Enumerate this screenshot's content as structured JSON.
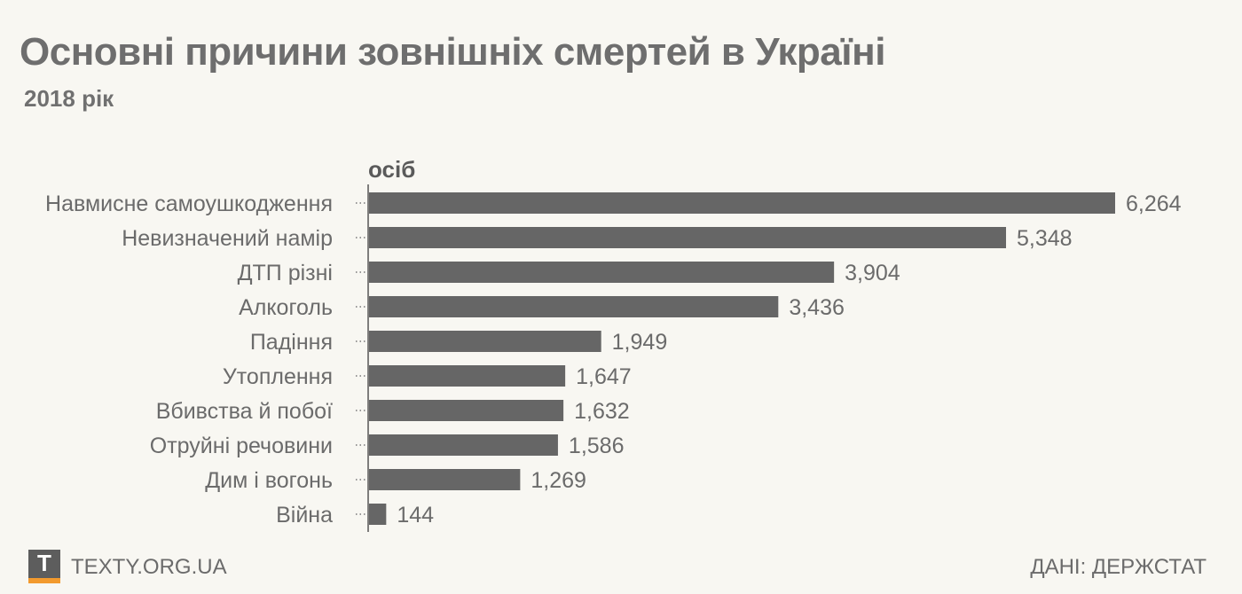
{
  "title": "Основні причини зовнішніх смертей в Україні",
  "subtitle": "2018 рік",
  "footer": {
    "logo_letter": "T",
    "site": "TEXTY.ORG.UA",
    "source": "ДАНІ: ДЕРЖСТАТ"
  },
  "colors": {
    "bar": "#666666",
    "background": "#f8f7f2",
    "text": "#6b6b6b",
    "logo_accent": "#f29a2e"
  },
  "chart_data": {
    "type": "bar",
    "orientation": "horizontal",
    "title": "Основні причини зовнішніх смертей в Україні",
    "subtitle": "2018 рік",
    "unit_label": "осіб",
    "categories": [
      "Навмисне самоушкодження",
      "Невизначений намір",
      "ДТП різні",
      "Алкоголь",
      "Падіння",
      "Утоплення",
      "Вбивства й побої",
      "Отруйні речовини",
      "Дим і вогонь",
      "Війна"
    ],
    "values": [
      6264,
      5348,
      3904,
      3436,
      1949,
      1647,
      1632,
      1586,
      1269,
      144
    ],
    "value_labels": [
      "6,264",
      "5,348",
      "3,904",
      "3,436",
      "1,949",
      "1,647",
      "1,632",
      "1,586",
      "1,269",
      "144"
    ],
    "xlim": [
      0,
      6264
    ],
    "grid": false,
    "legend": "none"
  }
}
